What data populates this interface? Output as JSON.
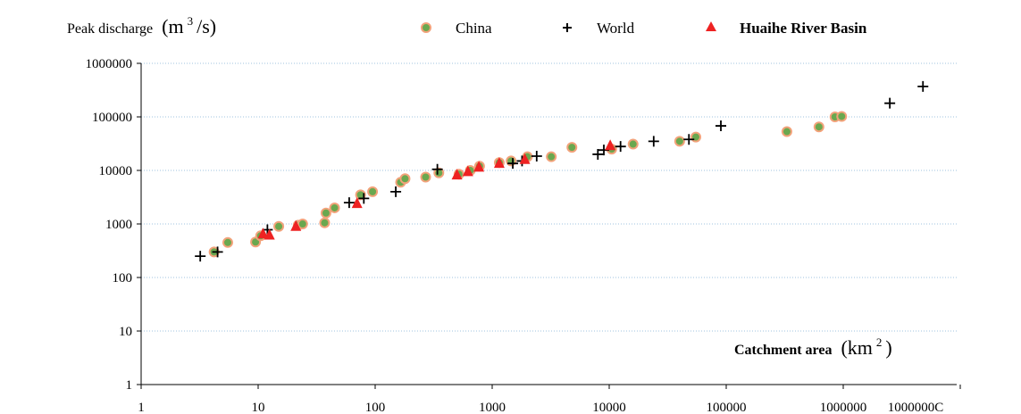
{
  "chart_data": {
    "type": "scatter",
    "x_scale": "log",
    "y_scale": "log",
    "xlim": [
      1,
      10000000
    ],
    "ylim": [
      1,
      1000000
    ],
    "grid": "horizontal dotted",
    "legend_position": "top",
    "ylabel": {
      "prefix": "Peak discharge",
      "unit_base": "(m",
      "unit_exp": "3",
      "unit_tail": "/s)"
    },
    "xlabel": {
      "prefix": "Catchment area",
      "unit_base": "(km",
      "unit_exp": "2",
      "unit_tail": ")"
    },
    "x_ticks": [
      "1",
      "10",
      "100",
      "1000",
      "10000",
      "100000",
      "1000000",
      "1000000C"
    ],
    "y_ticks": [
      "1",
      "10",
      "100",
      "1000",
      "10000",
      "100000",
      "1000000"
    ],
    "legend": [
      {
        "label": "China",
        "marker": "circle"
      },
      {
        "label": "World",
        "marker": "plus"
      },
      {
        "label": "Huaihe River Basin",
        "marker": "triangle"
      }
    ],
    "colors": {
      "china_fill": "#6aa84f",
      "china_edge": "#f2a27a",
      "world": "#000000",
      "huaihe": "#ee2222",
      "grid": "#9fc3df"
    },
    "series": [
      {
        "name": "China",
        "points": [
          [
            4.2,
            300
          ],
          [
            5.5,
            450
          ],
          [
            9.5,
            460
          ],
          [
            10.5,
            600
          ],
          [
            15,
            900
          ],
          [
            22,
            950
          ],
          [
            24,
            1000
          ],
          [
            37,
            1050
          ],
          [
            38,
            1600
          ],
          [
            45,
            2000
          ],
          [
            75,
            3500
          ],
          [
            95,
            4000
          ],
          [
            165,
            6000
          ],
          [
            180,
            7000
          ],
          [
            270,
            7500
          ],
          [
            350,
            9000
          ],
          [
            520,
            8500
          ],
          [
            650,
            10000
          ],
          [
            780,
            12000
          ],
          [
            1150,
            14000
          ],
          [
            1450,
            15000
          ],
          [
            2000,
            18000
          ],
          [
            3200,
            18000
          ],
          [
            4800,
            27000
          ],
          [
            10500,
            25000
          ],
          [
            16000,
            31000
          ],
          [
            40000,
            35000
          ],
          [
            55000,
            42000
          ],
          [
            330000,
            53000
          ],
          [
            620000,
            65000
          ],
          [
            850000,
            100000
          ],
          [
            970000,
            102000
          ]
        ]
      },
      {
        "name": "World",
        "points": [
          [
            3.2,
            250
          ],
          [
            4.5,
            300
          ],
          [
            12,
            780
          ],
          [
            60,
            2500
          ],
          [
            80,
            3000
          ],
          [
            150,
            4000
          ],
          [
            340,
            10500
          ],
          [
            1500,
            13500
          ],
          [
            1800,
            15000
          ],
          [
            2400,
            18500
          ],
          [
            8000,
            20000
          ],
          [
            9000,
            24000
          ],
          [
            12500,
            28000
          ],
          [
            24000,
            35000
          ],
          [
            48000,
            38000
          ],
          [
            90000,
            68000
          ],
          [
            2500000,
            180000
          ],
          [
            4800000,
            370000
          ]
        ]
      },
      {
        "name": "Huaihe River Basin",
        "points": [
          [
            11,
            650
          ],
          [
            12.5,
            620
          ],
          [
            21,
            900
          ],
          [
            70,
            2400
          ],
          [
            500,
            8200
          ],
          [
            620,
            9500
          ],
          [
            770,
            11500
          ],
          [
            1150,
            13500
          ],
          [
            1900,
            16000
          ],
          [
            10200,
            29000
          ]
        ]
      }
    ]
  }
}
